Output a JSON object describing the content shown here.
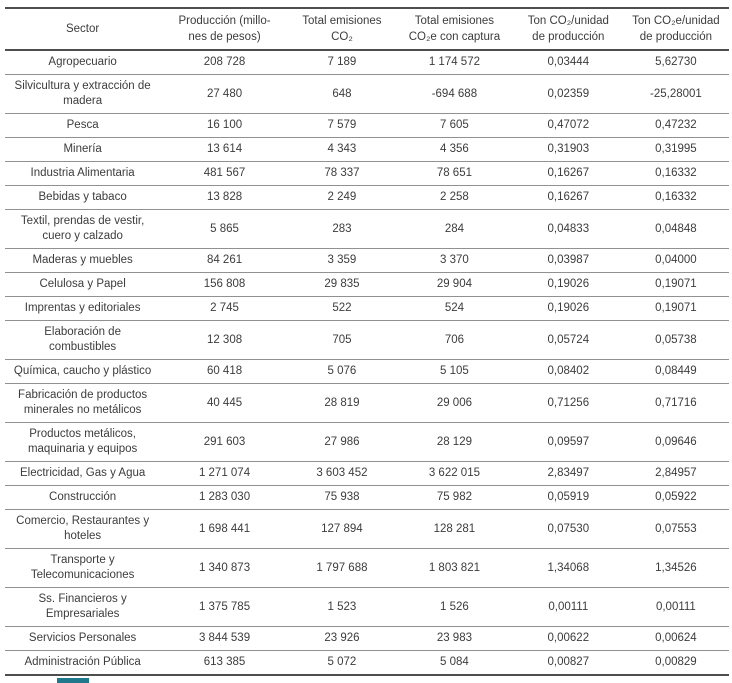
{
  "page": {
    "background_color": "#ffffff",
    "text_color": "#3c3c3c",
    "rule_color": "#919191",
    "heavy_rule_color": "#4e4e4e",
    "accent_color": "#20788c"
  },
  "table": {
    "columns": [
      {
        "id": "sector",
        "label": "Sector",
        "label_lines": [
          "Sector"
        ]
      },
      {
        "id": "produccion",
        "label": "Producción (millones de pesos)",
        "label_lines": [
          "Producción (millo-",
          "nes de pesos)"
        ]
      },
      {
        "id": "co2",
        "label": "Total emisiones CO₂",
        "label_lines": [
          "Total emisiones",
          "CO₂"
        ]
      },
      {
        "id": "co2e",
        "label": "Total emisiones CO₂e con captura",
        "label_lines": [
          "Total emisiones",
          "CO₂e con captura"
        ]
      },
      {
        "id": "ton-co2",
        "label": "Ton CO₂/unidad de producción",
        "label_lines": [
          "Ton CO₂/unidad",
          "de producción"
        ]
      },
      {
        "id": "ton-co2e",
        "label": "Ton CO₂e/unidad de producción",
        "label_lines": [
          "Ton CO₂e/unidad",
          "de producción"
        ]
      }
    ],
    "rows": [
      [
        "Agropecuario",
        "208 728",
        "7 189",
        "1 174 572",
        "0,03444",
        "5,62730"
      ],
      [
        "Silvicultura y extracción de madera",
        "27 480",
        "648",
        "-694 688",
        "0,02359",
        "-25,28001"
      ],
      [
        "Pesca",
        "16 100",
        "7 579",
        "7 605",
        "0,47072",
        "0,47232"
      ],
      [
        "Minería",
        "13 614",
        "4 343",
        "4 356",
        "0,31903",
        "0,31995"
      ],
      [
        "Industria Alimentaria",
        "481 567",
        "78 337",
        "78 651",
        "0,16267",
        "0,16332"
      ],
      [
        "Bebidas y tabaco",
        "13 828",
        "2 249",
        "2 258",
        "0,16267",
        "0,16332"
      ],
      [
        "Textil, prendas de vestir, cuero y calzado",
        "5 865",
        "283",
        "284",
        "0,04833",
        "0,04848"
      ],
      [
        "Maderas y muebles",
        "84 261",
        "3 359",
        "3 370",
        "0,03987",
        "0,04000"
      ],
      [
        "Celulosa y Papel",
        "156 808",
        "29 835",
        "29 904",
        "0,19026",
        "0,19071"
      ],
      [
        "Imprentas y editoriales",
        "2 745",
        "522",
        "524",
        "0,19026",
        "0,19071"
      ],
      [
        "Elaboración de combustibles",
        "12 308",
        "705",
        "706",
        "0,05724",
        "0,05738"
      ],
      [
        "Química, caucho y plástico",
        "60 418",
        "5 076",
        "5 105",
        "0,08402",
        "0,08449"
      ],
      [
        "Fabricación de productos minerales no metálicos",
        "40 445",
        "28 819",
        "29 006",
        "0,71256",
        "0,71716"
      ],
      [
        "Productos metálicos, maquinaria y equipos",
        "291 603",
        "27 986",
        "28 129",
        "0,09597",
        "0,09646"
      ],
      [
        "Electricidad, Gas y Agua",
        "1 271 074",
        "3 603 452",
        "3 622 015",
        "2,83497",
        "2,84957"
      ],
      [
        "Construcción",
        "1 283 030",
        "75 938",
        "75 982",
        "0,05919",
        "0,05922"
      ],
      [
        "Comercio, Restaurantes y hoteles",
        "1 698 441",
        "127 894",
        "128 281",
        "0,07530",
        "0,07553"
      ],
      [
        "Transporte y Telecomunicaciones",
        "1 340 873",
        "1 797 688",
        "1 803 821",
        "1,34068",
        "1,34526"
      ],
      [
        "Ss. Financieros y Empresariales",
        "1 375 785",
        "1 523",
        "1 526",
        "0,00111",
        "0,00111"
      ],
      [
        "Servicios Personales",
        "3 844 539",
        "23 926",
        "23 983",
        "0,00622",
        "0,00624"
      ],
      [
        "Administración Pública",
        "613 385",
        "5 072",
        "5 084",
        "0,00827",
        "0,00829"
      ]
    ]
  }
}
